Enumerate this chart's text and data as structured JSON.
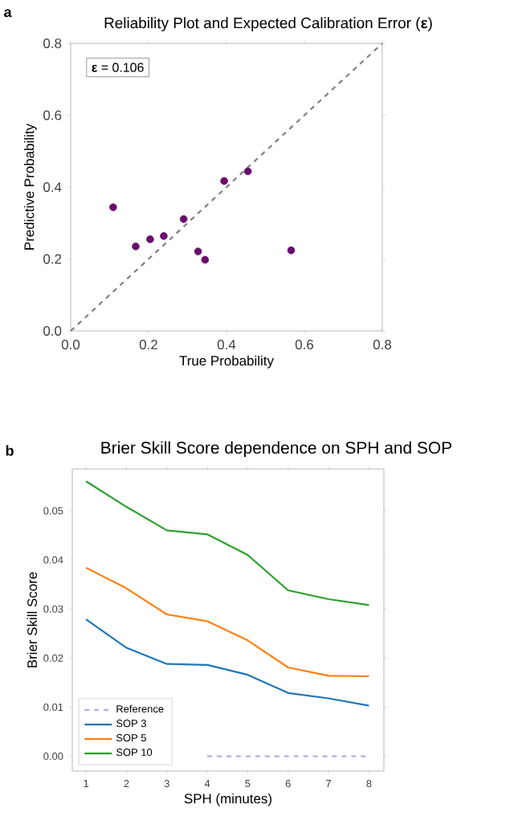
{
  "chart_data": [
    {
      "type": "scatter",
      "marker": "circle",
      "title": "Reliability Plot and Expected Calibration Error (**ε**)",
      "xlabel": "True Probability",
      "ylabel": "Predictive Probability",
      "annotations": [
        "a",
        "**ε** = 0.106"
      ],
      "xlim": [
        0,
        0.8
      ],
      "ylim": [
        0,
        0.8
      ],
      "xticks": [
        {
          "value": 0,
          "label": "0.0"
        },
        0.2,
        0.4,
        0.6,
        0.8
      ],
      "yticks": [
        {
          "value": 0,
          "label": "0.0"
        },
        0.2,
        0.4,
        0.6,
        0.8
      ],
      "series": [
        {
          "type": "scatter",
          "color": "#6a0d6e",
          "x": [
            0.109,
            0.167,
            0.204,
            0.239,
            0.29,
            0.327,
            0.345,
            0.394,
            0.455,
            0.566
          ],
          "values": [
            0.344,
            0.235,
            0.255,
            0.264,
            0.311,
            0.221,
            0.198,
            0.417,
            0.444,
            0.224
          ]
        },
        {
          "type": "line",
          "color": "#808080",
          "line_style": "dashed",
          "marker": "none",
          "x": [
            0,
            0.8
          ],
          "values": [
            0,
            0.8
          ]
        }
      ]
    },
    {
      "type": "line",
      "title": "Brier Skill Score dependence on SPH and SOP",
      "xlabel": "SPH (minutes)",
      "ylabel": "Brier Skill Score",
      "annotations": [
        "b"
      ],
      "x": [
        1,
        2,
        3,
        4,
        5,
        6,
        7,
        8
      ],
      "xlim": [
        0.66,
        8.37
      ],
      "ylim": [
        -0.003,
        0.0585
      ],
      "xticks": [
        1,
        2,
        3,
        4,
        5,
        6,
        7,
        8
      ],
      "yticks": [
        {
          "value": 0,
          "label": "0.00"
        },
        {
          "value": 0.01,
          "label": "0.01"
        },
        {
          "value": 0.02,
          "label": "0.02"
        },
        {
          "value": 0.03,
          "label": "0.03"
        },
        {
          "value": 0.04,
          "label": "0.04"
        },
        {
          "value": 0.05,
          "label": "0.05"
        }
      ],
      "legend": "bottom left",
      "series": [
        {
          "name": "Reference",
          "color": "#a9b3e6",
          "line_style": "dashed",
          "values": [
            null,
            null,
            null,
            0,
            0,
            0,
            0,
            0
          ]
        },
        {
          "name": "SOP 3",
          "color": "#1f77b4",
          "values": [
            0.0279,
            0.0221,
            0.0188,
            0.0186,
            0.0166,
            0.0129,
            0.0118,
            0.0103
          ]
        },
        {
          "name": "SOP 5",
          "color": "#ff7f0e",
          "values": [
            0.0384,
            0.0342,
            0.0289,
            0.0275,
            0.0236,
            0.0181,
            0.0164,
            0.0163
          ]
        },
        {
          "name": "SOP 10",
          "color": "#2ca02c",
          "values": [
            0.056,
            0.0508,
            0.046,
            0.0452,
            0.041,
            0.0338,
            0.032,
            0.0308
          ]
        }
      ]
    }
  ]
}
